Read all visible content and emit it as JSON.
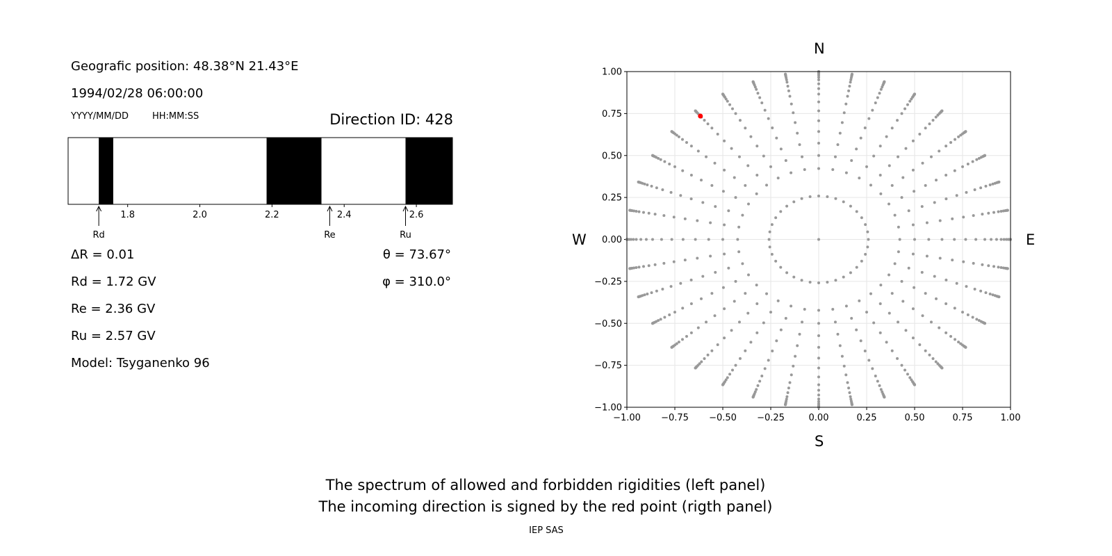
{
  "left_panel": {
    "position": "Geografic position: 48.38°N 21.43°E",
    "datetime": "1994/02/28 06:00:00",
    "date_format": "YYYY/MM/DD",
    "time_format": "HH:MM:SS",
    "direction_id": "Direction ID: 428",
    "delta_r": "ΔR = 0.01",
    "rd": "Rd = 1.72 GV",
    "re": "Re = 2.36 GV",
    "ru": "Ru = 2.57 GV",
    "model": "Model: Tsyganenko 96",
    "theta": "θ = 73.67°",
    "phi": "φ = 310.0°"
  },
  "footer": {
    "line1": "The spectrum of allowed and forbidden rigidities (left panel)",
    "line2": "The incoming direction is signed by the red point (rigth panel)",
    "credit": "IEP SAS"
  },
  "chart_data": [
    {
      "type": "bar",
      "title": "",
      "xlim": [
        1.635,
        2.7
      ],
      "xticks": [
        "1.8",
        "2.0",
        "2.2",
        "2.4",
        "2.6"
      ],
      "forbidden_bands": [
        [
          1.72,
          1.76
        ],
        [
          2.185,
          2.337
        ],
        [
          2.57,
          2.7
        ]
      ],
      "markers": [
        {
          "label": "Rd",
          "value": 1.72
        },
        {
          "label": "Re",
          "value": 2.36
        },
        {
          "label": "Ru",
          "value": 2.57
        }
      ],
      "colors": {
        "forbidden": "#000000",
        "allowed": "#ffffff"
      }
    },
    {
      "type": "scatter",
      "xlim": [
        -1,
        1
      ],
      "ylim": [
        -1,
        1
      ],
      "xticks": [
        "−1.00",
        "−0.75",
        "−0.50",
        "−0.25",
        "0.00",
        "0.25",
        "0.50",
        "0.75",
        "1.00"
      ],
      "yticks": [
        "−1.00",
        "−0.75",
        "−0.50",
        "−0.25",
        "0.00",
        "0.25",
        "0.50",
        "0.75",
        "1.00"
      ],
      "compass": {
        "n": "N",
        "s": "S",
        "w": "W",
        "e": "E"
      },
      "grid": true,
      "azimuth_step_deg": 10,
      "zenith_angles_deg": [
        15,
        25,
        30,
        35,
        40,
        45,
        50,
        55,
        60,
        64,
        68,
        72,
        75,
        78,
        81,
        83,
        85,
        87,
        89,
        90
      ],
      "highlight": {
        "theta": 73.67,
        "phi": 310.0
      },
      "colors": {
        "points": "#999999",
        "highlight": "#ff0000",
        "grid": "#e6e6e6"
      }
    }
  ]
}
